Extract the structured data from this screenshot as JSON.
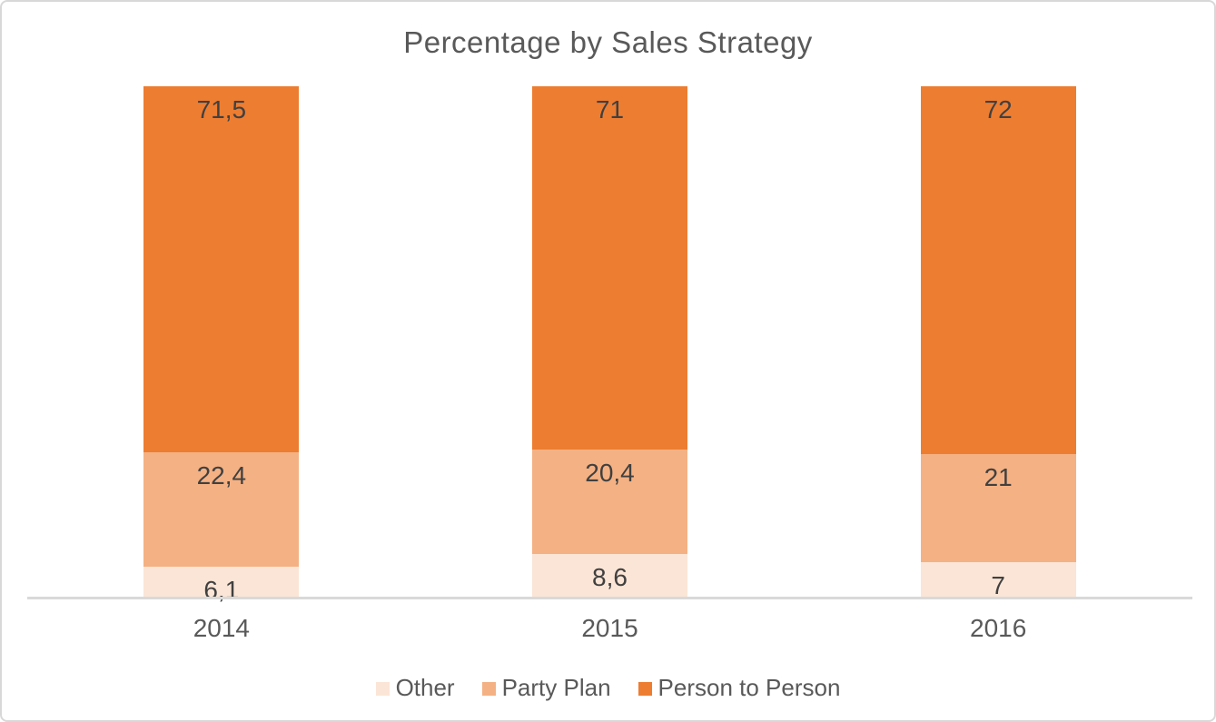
{
  "frame": {
    "background_color": "#ffffff",
    "border_color": "#d8d8d8"
  },
  "chart_data": {
    "type": "bar",
    "variant": "stacked-column",
    "title": "Percentage by Sales Strategy",
    "xlabel": "",
    "ylabel": "",
    "categories": [
      "2014",
      "2015",
      "2016"
    ],
    "series": [
      {
        "name": "Other",
        "color": "#fbe5d6",
        "values": [
          6.1,
          8.6,
          7
        ],
        "labels": [
          "6,1",
          "8,6",
          "7"
        ]
      },
      {
        "name": "Party Plan",
        "color": "#f4b183",
        "values": [
          22.4,
          20.4,
          21
        ],
        "labels": [
          "22,4",
          "20,4",
          "21"
        ]
      },
      {
        "name": "Person to Person",
        "color": "#ed7d31",
        "values": [
          71.5,
          71,
          72
        ],
        "labels": [
          "71,5",
          "71",
          "72"
        ]
      }
    ],
    "ylim": [
      0,
      100
    ],
    "grid": false,
    "y_axis_visible": false,
    "legend_position": "bottom",
    "colors": {
      "title_text": "#595959",
      "data_label_text": "#404040",
      "tick_label_text": "#595959",
      "axis_line": "#d9d9d9"
    }
  }
}
